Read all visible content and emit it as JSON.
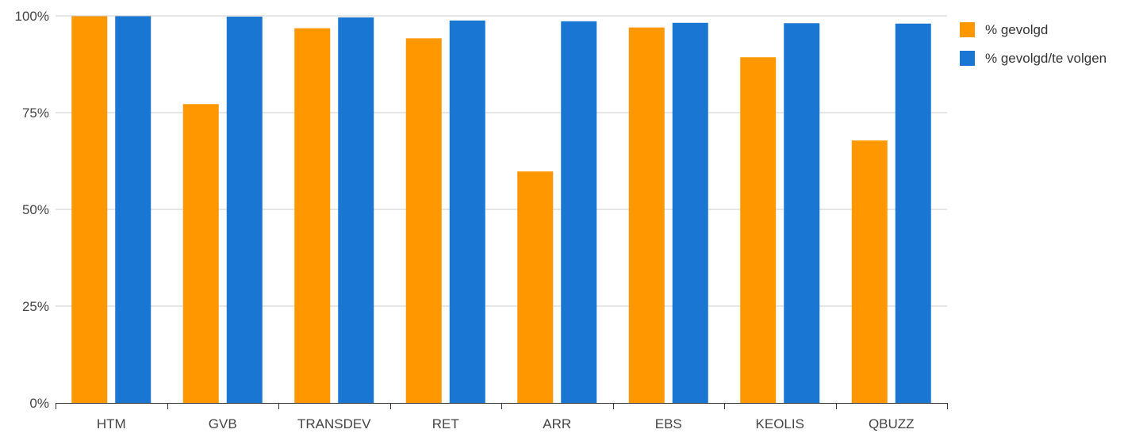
{
  "chart_data": {
    "type": "bar",
    "categories": [
      "HTM",
      "GVB",
      "TRANSDEV",
      "RET",
      "ARR",
      "EBS",
      "KEOLIS",
      "QBUZZ"
    ],
    "series": [
      {
        "name": "% gevolgd",
        "color": "#FF9800",
        "values": [
          99.9,
          77.2,
          96.8,
          94.2,
          59.8,
          97.0,
          89.3,
          67.8
        ]
      },
      {
        "name": "% gevolgd/te volgen",
        "color": "#1976D2",
        "values": [
          99.9,
          99.8,
          99.6,
          98.8,
          98.6,
          98.2,
          98.1,
          98.0
        ]
      }
    ],
    "ylim": [
      0,
      100
    ],
    "yticks": [
      0,
      25,
      50,
      75,
      100
    ],
    "ytick_labels": [
      "0%",
      "25%",
      "50%",
      "75%",
      "100%"
    ],
    "grid": true,
    "legend_position": "top-right"
  }
}
